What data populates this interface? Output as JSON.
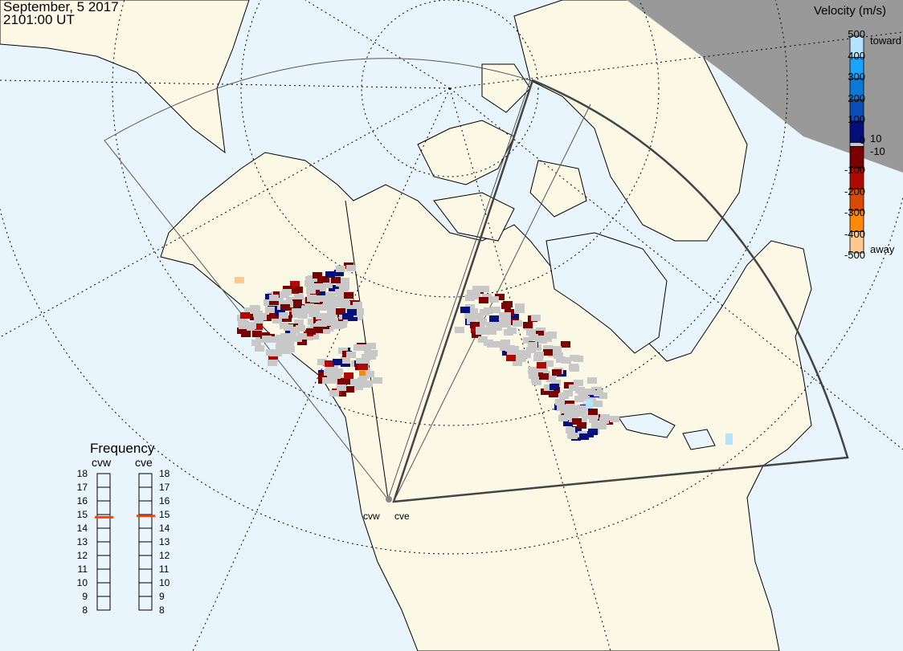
{
  "header": {
    "date": "September, 5 2017",
    "time": "2101:00 UT"
  },
  "colorbar": {
    "title": "Velocity (m/s)",
    "ticks": [
      "500",
      "400",
      "300",
      "200",
      "100",
      "0",
      "-100",
      "-200",
      "-300",
      "-400",
      "-500"
    ],
    "inner_labels": [
      "10",
      "-10"
    ],
    "top_label": "toward",
    "bottom_label": "away",
    "colors": [
      "#b3e3ff",
      "#1aa3ff",
      "#0a7ad8",
      "#0a4cb8",
      "#050f7a",
      "#c8c8c8",
      "#7a0000",
      "#b00a00",
      "#d94a00",
      "#ff8a00",
      "#ffc890"
    ]
  },
  "frequency": {
    "title": "Frequency",
    "unit_ticks": [
      "18",
      "17",
      "16",
      "15",
      "14",
      "13",
      "12",
      "11",
      "10",
      "9",
      "8"
    ],
    "radars": [
      {
        "name": "cvw",
        "value_mhz": 14.8
      },
      {
        "name": "cve",
        "value_mhz": 14.9
      }
    ],
    "marker_color": "#ff4000"
  },
  "sites": [
    "cvw",
    "cve"
  ],
  "map": {
    "ocean": "#e8f5fd",
    "land": "#fbf9e6",
    "night": "#999999",
    "scatter": "#c8c8c8"
  }
}
